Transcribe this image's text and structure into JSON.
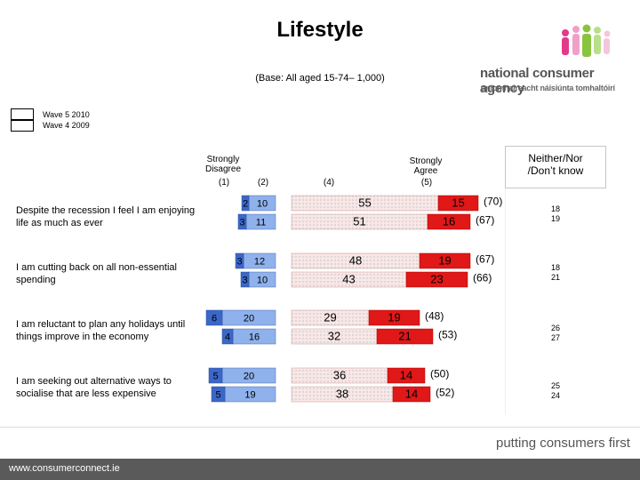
{
  "title": "Lifestyle",
  "base": "(Base: All aged 15-74– 1,000)",
  "brand": {
    "name_en": "national consumer agency",
    "name_ga": "gníomhaireacht náisiúnta tomhaltóirí",
    "tagline": "putting consumers first",
    "url": "www.consumerconnect.ie"
  },
  "legend": {
    "wave5": "Wave 5 2010",
    "wave4": "Wave 4 2009"
  },
  "columns": {
    "strongly_disagree": "Strongly\nDisagree",
    "c1": "(1)",
    "c2": "(2)",
    "c4": "(4)",
    "strongly_agree": "Strongly\nAgree",
    "c5": "(5)",
    "neither": "Neither/Nor\n/Don’t know"
  },
  "colors": {
    "disagree_strong": "#3b67c9",
    "disagree": "#8fb1ec",
    "agree": "#f3b4b4",
    "agree_strong": "#e01818"
  },
  "chart_data": {
    "type": "bar",
    "title": "Lifestyle",
    "stacked": "diverging",
    "categories": [
      "Despite the recession I feel I am enjoying life as much as ever",
      "I am cutting back on all non-essential spending",
      "I am reluctant to plan any holidays until things improve in the economy",
      "I am seeking out alternative ways to socialise that are less expensive"
    ],
    "series": [
      {
        "name": "Wave 5 2010",
        "disagree_strong": [
          2,
          3,
          6,
          5
        ],
        "disagree": [
          10,
          12,
          20,
          20
        ],
        "agree": [
          55,
          48,
          29,
          36
        ],
        "agree_strong": [
          15,
          19,
          19,
          14
        ],
        "agree_total": [
          "(70)",
          "(67)",
          "(48)",
          "(50)"
        ],
        "neither": [
          18,
          18,
          26,
          25
        ]
      },
      {
        "name": "Wave 4 2009",
        "disagree_strong": [
          3,
          3,
          4,
          5
        ],
        "disagree": [
          11,
          10,
          16,
          19
        ],
        "agree": [
          51,
          43,
          32,
          38
        ],
        "agree_strong": [
          16,
          23,
          21,
          14
        ],
        "agree_total": [
          "(67)",
          "(66)",
          "(53)",
          "(52)"
        ],
        "neither": [
          19,
          21,
          27,
          24
        ]
      }
    ]
  }
}
